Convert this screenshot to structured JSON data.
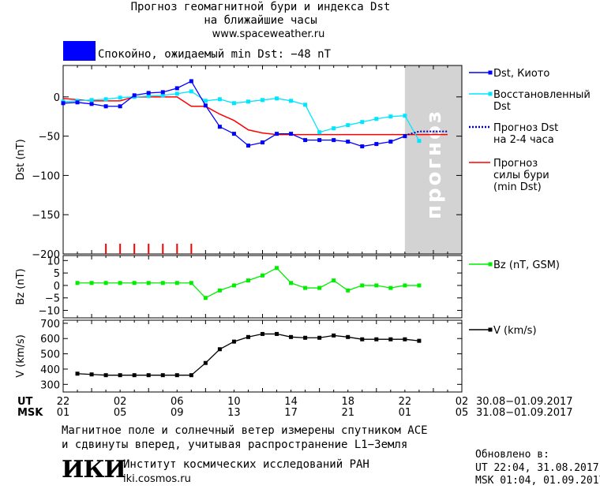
{
  "header": {
    "title_line1": "Прогноз геомагнитной бури и индекса Dst",
    "title_line2": "на ближайшие часы",
    "url": "www.spaceweather.ru",
    "status_text": "Спокойно, ожидаемый min Dst: −48 nT",
    "status_color": "#0000ff"
  },
  "footer": {
    "note_line1": "Магнитное поле и солнечный ветер измерены спутником ACE",
    "note_line2": "и сдвинуты вперед, учитывая распространение L1−Земля",
    "logo_text": "ИКИ",
    "institute": "Институт космических исследований РАН",
    "institute_url": "iki.cosmos.ru",
    "updated_label": "Обновлено в:",
    "updated_ut": "UT  22:04, 31.08.2017",
    "updated_msk": "MSK 01:04, 01.09.2017"
  },
  "chart_data": [
    {
      "type": "line",
      "ylabel": "Dst (nT)",
      "ylim": [
        -200,
        40
      ],
      "yticks": [
        0,
        -50,
        -100,
        -150,
        -200
      ],
      "forecast_band_label": "прогноз",
      "forecast_band_color": "#d3d3d3",
      "legend_position": "right",
      "series": [
        {
          "name": "Dst, Киото",
          "color": "#0000ff",
          "x": [
            -2,
            -1,
            0,
            1,
            2,
            3,
            4,
            5,
            6,
            7,
            8,
            9,
            10,
            11,
            12,
            13,
            14,
            15,
            16,
            17,
            18,
            19,
            20,
            21,
            22
          ],
          "y": [
            -8,
            -7,
            -9,
            -12,
            -12,
            2,
            5,
            6,
            11,
            20,
            -11,
            -38,
            -47,
            -62,
            -58,
            -47,
            -47,
            -55,
            -55,
            -55,
            -57,
            -63,
            -60,
            -57,
            -50
          ]
        },
        {
          "name": "Восстановленный Dst",
          "color": "#00e6ff",
          "x": [
            -2,
            -1,
            0,
            1,
            2,
            3,
            4,
            5,
            6,
            7,
            8,
            9,
            10,
            11,
            12,
            13,
            14,
            15,
            16,
            17,
            18,
            19,
            20,
            21,
            22,
            23
          ],
          "y": [
            -6,
            -5,
            -4,
            -3,
            -1,
            0,
            1,
            2,
            4,
            7,
            -5,
            -3,
            -8,
            -6,
            -4,
            -2,
            -5,
            -10,
            -45,
            -40,
            -36,
            -32,
            -28,
            -25,
            -24,
            -56
          ]
        },
        {
          "name": "Прогноз Dst на 2-4 часа",
          "color": "#0000aa",
          "x": [
            22,
            23,
            24,
            25
          ],
          "y": [
            -49,
            -44,
            -44,
            -44
          ]
        },
        {
          "name": "Прогноз силы бури (min Dst)",
          "color": "#ff0000",
          "x": [
            -2,
            0,
            1,
            2,
            3,
            4,
            5,
            6,
            7,
            8,
            9,
            10,
            11,
            12,
            13,
            14,
            15,
            16,
            17,
            18,
            19,
            20,
            21,
            22,
            23,
            24,
            25
          ],
          "y": [
            -2,
            -5,
            -5,
            -5,
            0,
            0,
            0,
            0,
            -12,
            -12,
            -22,
            -30,
            -42,
            -46,
            -48,
            -48,
            -48,
            -48,
            -48,
            -48,
            -48,
            -48,
            -48,
            -48,
            -48,
            -48,
            -48
          ]
        }
      ],
      "storm_markers_x": [
        1,
        2,
        3,
        4,
        5,
        6,
        7
      ]
    },
    {
      "type": "line",
      "ylabel": "Bz (nT)",
      "ylim": [
        -13,
        12
      ],
      "yticks": [
        10,
        5,
        0,
        -5,
        -10
      ],
      "series": [
        {
          "name": "Bz (nT, GSM)",
          "color": "#00ee00",
          "x": [
            -1,
            0,
            1,
            2,
            3,
            4,
            5,
            6,
            7,
            8,
            9,
            10,
            11,
            12,
            13,
            14,
            15,
            16,
            17,
            18,
            19,
            20,
            21,
            22,
            23
          ],
          "y": [
            1,
            1,
            1,
            1,
            1,
            1,
            1,
            1,
            1,
            -5,
            -2,
            0,
            2,
            4,
            7,
            1,
            -1,
            -1,
            2,
            -2,
            0,
            0,
            -1,
            0,
            0
          ]
        }
      ]
    },
    {
      "type": "line",
      "ylabel": "V (km/s)",
      "ylim": [
        250,
        720
      ],
      "yticks": [
        700,
        600,
        500,
        400,
        300
      ],
      "x_tick_labels_ut": [
        "02",
        "06",
        "10",
        "14",
        "18",
        "22",
        "02"
      ],
      "x_tick_labels_msk": [
        "05",
        "09",
        "13",
        "17",
        "21",
        "01",
        "05"
      ],
      "x_row_ut": "UT",
      "x_row_msk": "MSK",
      "x_first_ut": "22",
      "x_first_msk": "01",
      "date_range_ut": "30.08−01.09.2017",
      "date_range_msk": "31.08−01.09.2017",
      "series": [
        {
          "name": "V (km/s)",
          "color": "#000000",
          "x": [
            -1,
            0,
            1,
            2,
            3,
            4,
            5,
            6,
            7,
            8,
            9,
            10,
            11,
            12,
            13,
            14,
            15,
            16,
            17,
            18,
            19,
            20,
            21,
            22,
            23
          ],
          "y": [
            370,
            365,
            360,
            360,
            360,
            360,
            360,
            360,
            360,
            440,
            530,
            580,
            610,
            630,
            630,
            610,
            605,
            605,
            620,
            610,
            595,
            595,
            595,
            595,
            585
          ]
        }
      ]
    }
  ]
}
